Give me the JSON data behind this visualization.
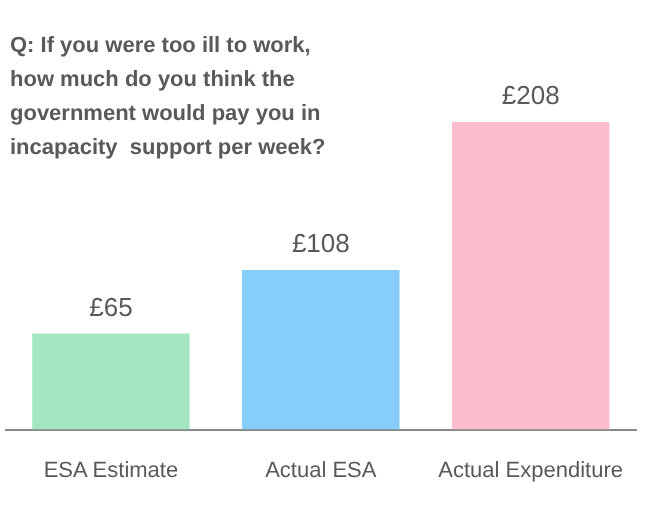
{
  "chart_data": {
    "type": "bar",
    "title": "Q: If you were too ill to work, how much do you think the government would pay you in incapacity  support per week?",
    "categories": [
      "ESA Estimate",
      "Actual ESA",
      "Actual Expenditure"
    ],
    "values": [
      65,
      108,
      208
    ],
    "value_labels": [
      "£65",
      "£108",
      "£208"
    ],
    "colors": [
      "#a3e6bf",
      "#87cdfb",
      "#fbbdcb"
    ],
    "grid": false,
    "legend": false
  }
}
